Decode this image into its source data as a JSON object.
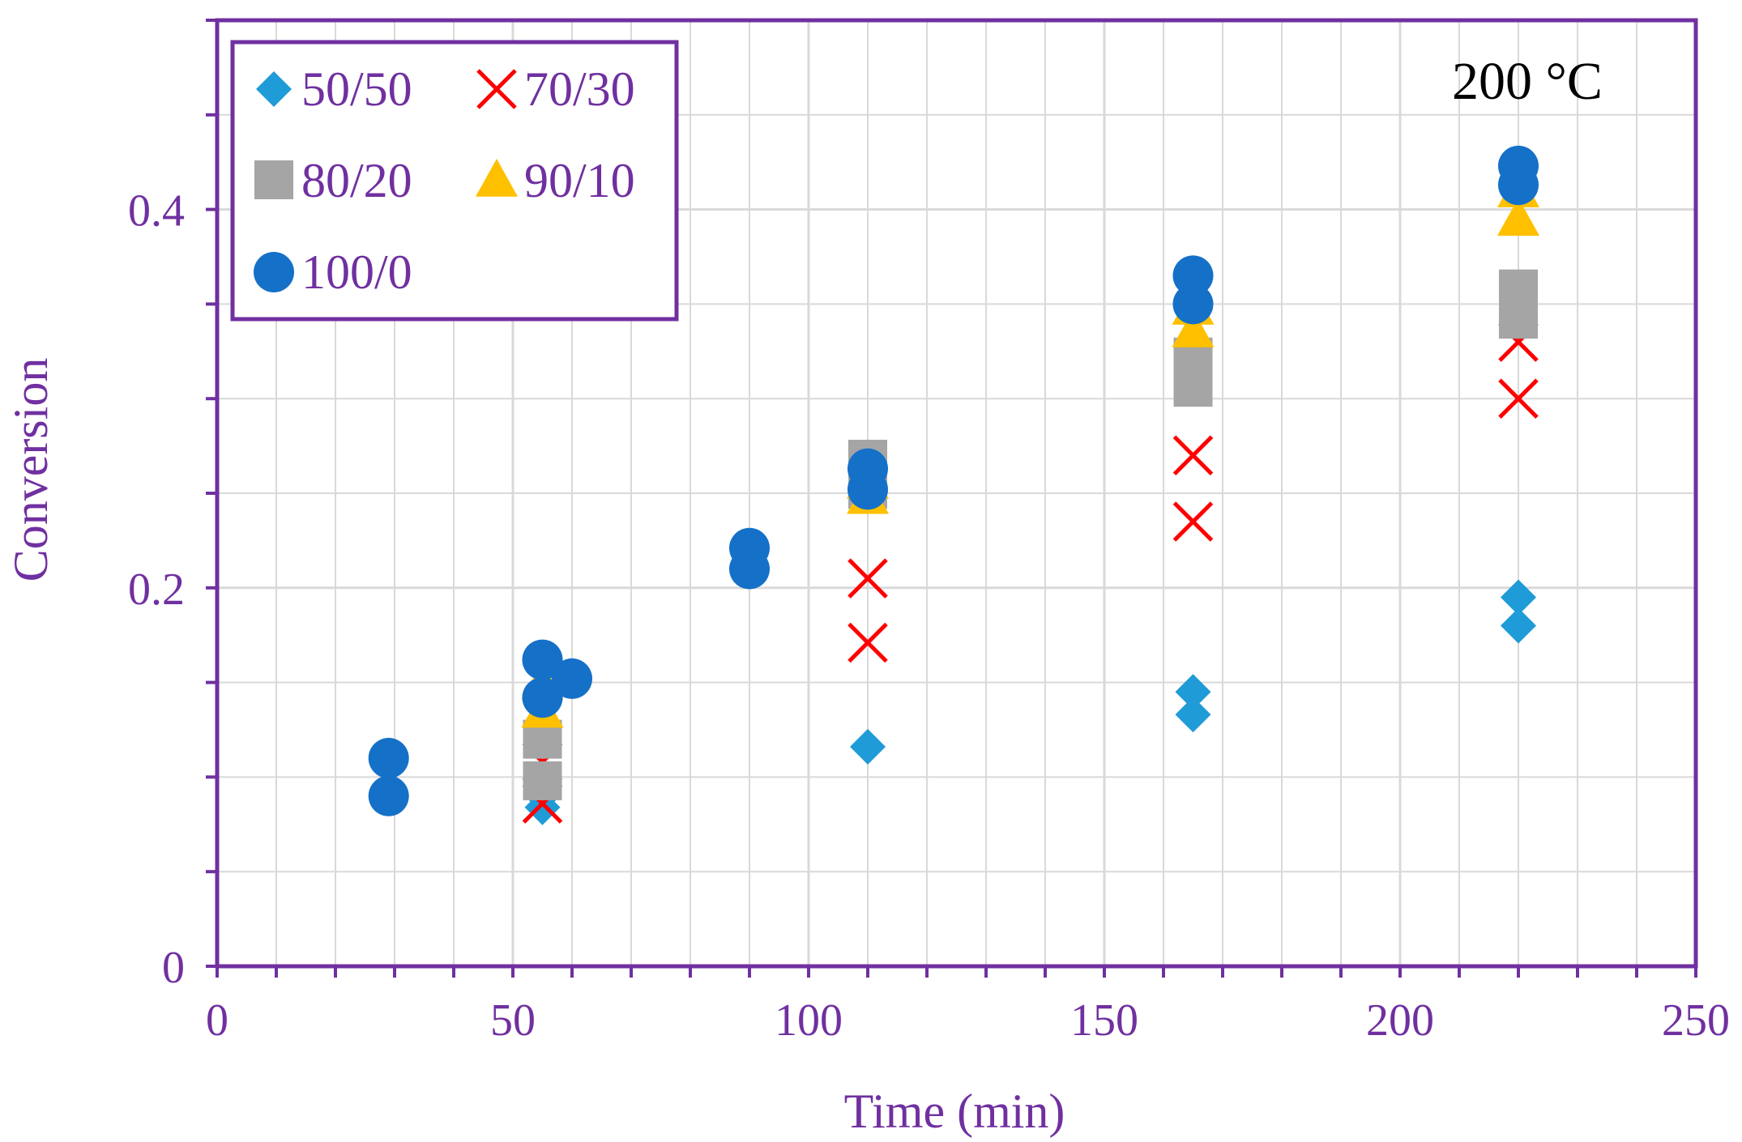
{
  "chart_data": {
    "type": "scatter",
    "title": "",
    "annotation": "200 °C",
    "xlabel": "Time (min)",
    "ylabel": "Conversion",
    "xlim": [
      0,
      250
    ],
    "ylim": [
      0,
      0.5
    ],
    "x_ticks": [
      0,
      50,
      100,
      150,
      200,
      250
    ],
    "x_tick_labels": [
      "0",
      "50",
      "100",
      "150",
      "200",
      "250"
    ],
    "y_ticks": [
      0,
      0.2,
      0.4
    ],
    "y_tick_labels": [
      "0",
      "0.2",
      "0.4"
    ],
    "x_minor_step": 10,
    "y_minor_step": 0.05,
    "grid": true,
    "legend_position": "top-left",
    "colors": {
      "axis": "#7030A0",
      "grid": "#d9d9d9",
      "annotation": "#000000"
    },
    "series": [
      {
        "name": "50/50",
        "marker": "diamond",
        "color": "#1F9BD7",
        "points": [
          [
            55,
            0.084
          ],
          [
            55,
            0.09
          ],
          [
            110,
            0.116
          ],
          [
            165,
            0.133
          ],
          [
            165,
            0.145
          ],
          [
            220,
            0.18
          ],
          [
            220,
            0.195
          ]
        ]
      },
      {
        "name": "70/30",
        "marker": "x",
        "color": "#FF0000",
        "points": [
          [
            55,
            0.086
          ],
          [
            55,
            0.108
          ],
          [
            110,
            0.171
          ],
          [
            110,
            0.205
          ],
          [
            165,
            0.235
          ],
          [
            165,
            0.27
          ],
          [
            220,
            0.3
          ],
          [
            220,
            0.33
          ]
        ]
      },
      {
        "name": "80/20",
        "marker": "square",
        "color": "#A5A5A5",
        "points": [
          [
            55,
            0.098
          ],
          [
            55,
            0.12
          ],
          [
            110,
            0.252
          ],
          [
            110,
            0.268
          ],
          [
            165,
            0.306
          ],
          [
            165,
            0.322
          ],
          [
            220,
            0.342
          ],
          [
            220,
            0.358
          ]
        ]
      },
      {
        "name": "90/10",
        "marker": "triangle",
        "color": "#FFC000",
        "points": [
          [
            55,
            0.135
          ],
          [
            55,
            0.15
          ],
          [
            110,
            0.248
          ],
          [
            110,
            0.256
          ],
          [
            165,
            0.336
          ],
          [
            165,
            0.348
          ],
          [
            220,
            0.395
          ],
          [
            220,
            0.41
          ]
        ]
      },
      {
        "name": "100/0",
        "marker": "circle",
        "color": "#1570C8",
        "points": [
          [
            29,
            0.09
          ],
          [
            29,
            0.11
          ],
          [
            55,
            0.142
          ],
          [
            55,
            0.162
          ],
          [
            60,
            0.152
          ],
          [
            90,
            0.21
          ],
          [
            90,
            0.221
          ],
          [
            110,
            0.252
          ],
          [
            110,
            0.263
          ],
          [
            165,
            0.35
          ],
          [
            165,
            0.365
          ],
          [
            220,
            0.413
          ],
          [
            220,
            0.423
          ]
        ]
      }
    ]
  }
}
